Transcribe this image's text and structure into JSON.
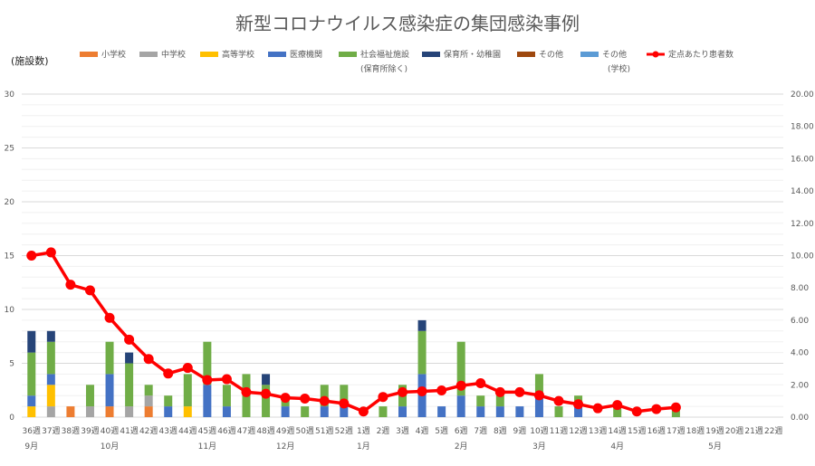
{
  "chart_data": {
    "type": "bar",
    "title": "新型コロナウイルス感染症の集団感染事例",
    "ylabel": "(施設数)",
    "ylim": [
      0,
      30
    ],
    "y2lim": [
      0,
      20
    ],
    "y_ticks": [
      "0",
      "5",
      "10",
      "15",
      "20",
      "25",
      "30"
    ],
    "y2_ticks": [
      "0.00",
      "2.00",
      "4.00",
      "6.00",
      "8.00",
      "10.00",
      "12.00",
      "14.00",
      "16.00",
      "18.00",
      "20.00"
    ],
    "categories": [
      "36週",
      "37週",
      "38週",
      "39週",
      "40週",
      "41週",
      "42週",
      "43週",
      "44週",
      "45週",
      "46週",
      "47週",
      "48週",
      "49週",
      "50週",
      "51週",
      "52週",
      "1週",
      "2週",
      "3週",
      "4週",
      "5週",
      "6週",
      "7週",
      "8週",
      "9週",
      "10週",
      "11週",
      "12週",
      "13週",
      "14週",
      "15週",
      "16週",
      "17週",
      "18週",
      "19週",
      "20週",
      "21週",
      "22週"
    ],
    "months": [
      {
        "label": "9月",
        "at": 0
      },
      {
        "label": "10月",
        "at": 4
      },
      {
        "label": "11月",
        "at": 9
      },
      {
        "label": "12月",
        "at": 13
      },
      {
        "label": "1月",
        "at": 17
      },
      {
        "label": "2月",
        "at": 22
      },
      {
        "label": "3月",
        "at": 26
      },
      {
        "label": "4月",
        "at": 30
      },
      {
        "label": "5月",
        "at": 35
      }
    ],
    "series": [
      {
        "name": "小学校",
        "color": "#ED7D31",
        "values": [
          0,
          0,
          1,
          0,
          1,
          0,
          1,
          0,
          0,
          0,
          0,
          0,
          0,
          0,
          0,
          0,
          0,
          0,
          0,
          0,
          0,
          0,
          0,
          0,
          0,
          0,
          0,
          0,
          0,
          0,
          0,
          0,
          0,
          0,
          0,
          0,
          0,
          0,
          0
        ]
      },
      {
        "name": "中学校",
        "color": "#A5A5A5",
        "values": [
          0,
          1,
          0,
          1,
          0,
          1,
          1,
          0,
          0,
          0,
          0,
          0,
          0,
          0,
          0,
          0,
          0,
          0,
          0,
          0,
          0,
          0,
          0,
          0,
          0,
          0,
          0,
          0,
          0,
          0,
          0,
          0,
          0,
          0,
          0,
          0,
          0,
          0,
          0
        ]
      },
      {
        "name": "高等学校",
        "color": "#FFC000",
        "values": [
          1,
          2,
          0,
          0,
          0,
          0,
          0,
          0,
          1,
          0,
          0,
          0,
          0,
          0,
          0,
          0,
          0,
          0,
          0,
          0,
          0,
          0,
          0,
          0,
          0,
          0,
          0,
          0,
          0,
          0,
          0,
          0,
          0,
          0,
          0,
          0,
          0,
          0,
          0
        ]
      },
      {
        "name": "医療機関",
        "color": "#4472C4",
        "values": [
          1,
          1,
          0,
          0,
          3,
          0,
          0,
          1,
          0,
          3,
          1,
          0,
          0,
          1,
          0,
          1,
          1,
          0,
          0,
          1,
          4,
          1,
          2,
          1,
          1,
          1,
          2,
          0,
          1,
          0,
          0,
          0,
          0,
          0,
          0,
          0,
          0,
          0,
          0
        ]
      },
      {
        "name": "社会福祉施設",
        "color": "#70AD47",
        "values": [
          4,
          3,
          0,
          2,
          3,
          4,
          1,
          1,
          3,
          4,
          2,
          4,
          3,
          1,
          1,
          2,
          2,
          0,
          1,
          2,
          4,
          0,
          5,
          1,
          1,
          0,
          2,
          1,
          1,
          0,
          1,
          0,
          0,
          1,
          0,
          0,
          0,
          0,
          0
        ]
      },
      {
        "name": "保育所・幼稚園",
        "color": "#264478",
        "values": [
          2,
          1,
          0,
          0,
          0,
          1,
          0,
          0,
          0,
          0,
          0,
          0,
          1,
          0,
          0,
          0,
          0,
          0,
          0,
          0,
          1,
          0,
          0,
          0,
          0,
          0,
          0,
          0,
          0,
          0,
          0,
          0,
          0,
          0,
          0,
          0,
          0,
          0,
          0
        ]
      },
      {
        "name": "その他",
        "color": "#9E480E",
        "values": [
          0,
          0,
          0,
          0,
          0,
          0,
          0,
          0,
          0,
          0,
          0,
          0,
          0,
          0,
          0,
          0,
          0,
          0,
          0,
          0,
          0,
          0,
          0,
          0,
          0,
          0,
          0,
          0,
          0,
          0,
          0,
          0,
          0,
          0,
          0,
          0,
          0,
          0,
          0
        ]
      },
      {
        "name": "その他 (学校)",
        "color": "#5B9BD5",
        "values": [
          0,
          0,
          0,
          0,
          0,
          0,
          0,
          0,
          0,
          0,
          0,
          0,
          0,
          0,
          0,
          0,
          0,
          0,
          0,
          0,
          0,
          0,
          0,
          0,
          0,
          0,
          0,
          0,
          0,
          0,
          0,
          0,
          0,
          0,
          0,
          0,
          0,
          0,
          0
        ]
      }
    ],
    "line_series": {
      "name": "定点あたり患者数",
      "color": "#FF0000",
      "axis": "secondary",
      "values": [
        10.0,
        10.2,
        8.2,
        7.85,
        6.15,
        4.8,
        3.6,
        2.7,
        3.05,
        2.3,
        2.35,
        1.55,
        1.45,
        1.2,
        1.15,
        1.0,
        0.85,
        0.35,
        1.25,
        1.55,
        1.6,
        1.65,
        1.95,
        2.1,
        1.55,
        1.55,
        1.35,
        1.0,
        0.8,
        0.55,
        0.75,
        0.35,
        0.5,
        0.6,
        null,
        null,
        null,
        null,
        null
      ]
    }
  },
  "legend": [
    {
      "label": "小学校",
      "sub": "",
      "color": "#ED7D31",
      "kind": "bar"
    },
    {
      "label": "中学校",
      "sub": "",
      "color": "#A5A5A5",
      "kind": "bar"
    },
    {
      "label": "高等学校",
      "sub": "",
      "color": "#FFC000",
      "kind": "bar"
    },
    {
      "label": "医療機関",
      "sub": "",
      "color": "#4472C4",
      "kind": "bar"
    },
    {
      "label": "社会福祉施設",
      "sub": "(保育所除く)",
      "color": "#70AD47",
      "kind": "bar"
    },
    {
      "label": "保育所・幼稚園",
      "sub": "",
      "color": "#264478",
      "kind": "bar"
    },
    {
      "label": "その他",
      "sub": "",
      "color": "#9E480E",
      "kind": "bar"
    },
    {
      "label": "その他",
      "sub": "(学校)",
      "color": "#5B9BD5",
      "kind": "bar"
    },
    {
      "label": "定点あたり患者数",
      "sub": "",
      "color": "#FF0000",
      "kind": "line"
    }
  ]
}
